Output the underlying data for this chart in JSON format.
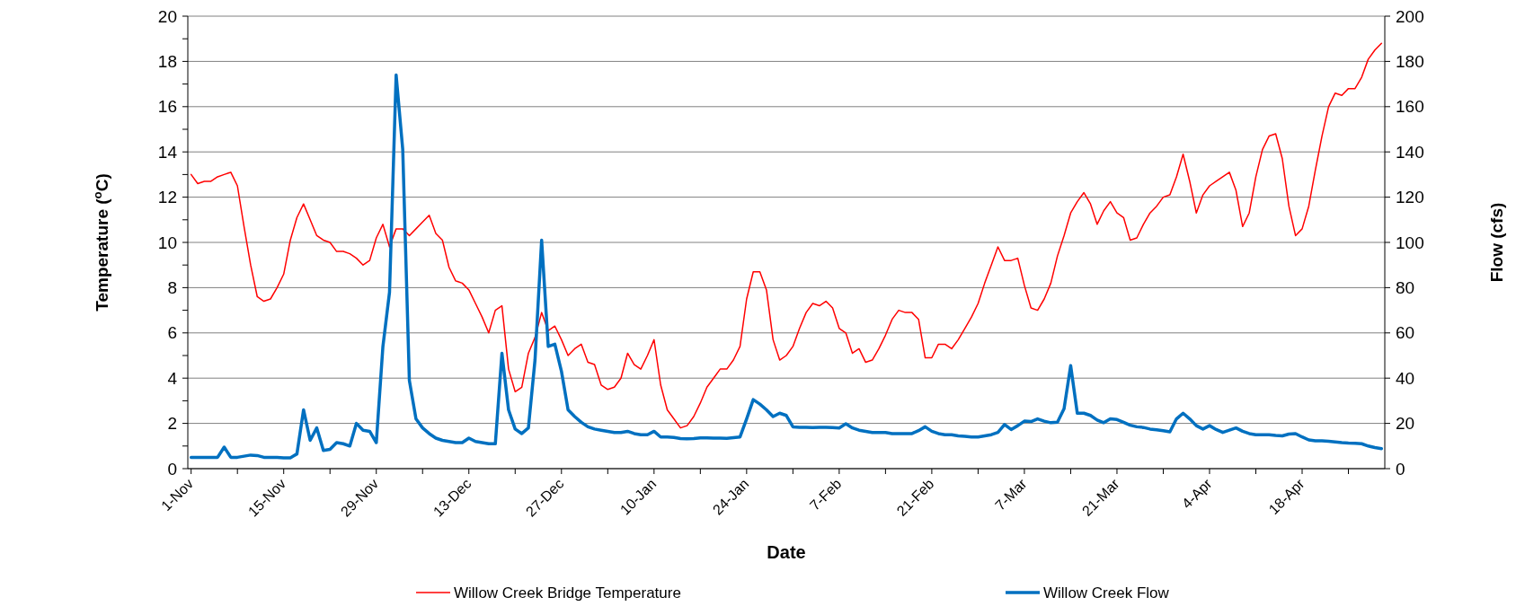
{
  "chart_data": {
    "type": "line",
    "xlabel": "Date",
    "ylabel": "Temperature ($^{o}$C)",
    "y2label": "Flow (cfs)",
    "categories": [
      "1-Nov",
      null,
      null,
      null,
      null,
      null,
      null,
      null,
      null,
      null,
      null,
      null,
      null,
      null,
      "15-Nov",
      null,
      null,
      null,
      null,
      null,
      null,
      null,
      null,
      null,
      null,
      null,
      null,
      null,
      "29-Nov",
      null,
      null,
      null,
      null,
      null,
      null,
      null,
      null,
      null,
      null,
      null,
      null,
      null,
      "13-Dec",
      null,
      null,
      null,
      null,
      null,
      null,
      null,
      null,
      null,
      null,
      null,
      null,
      null,
      "27-Dec",
      null,
      null,
      null,
      null,
      null,
      null,
      null,
      null,
      null,
      null,
      null,
      null,
      null,
      "10-Jan",
      null,
      null,
      null,
      null,
      null,
      null,
      null,
      null,
      null,
      null,
      null,
      null,
      null,
      "24-Jan",
      null,
      null,
      null,
      null,
      null,
      null,
      null,
      null,
      null,
      null,
      null,
      null,
      null,
      "7-Feb",
      null,
      null,
      null,
      null,
      null,
      null,
      null,
      null,
      null,
      null,
      null,
      null,
      null,
      "21-Feb",
      null,
      null,
      null,
      null,
      null,
      null,
      null,
      null,
      null,
      null,
      null,
      null,
      null,
      "7-Mar",
      null,
      null,
      null,
      null,
      null,
      null,
      null,
      null,
      null,
      null,
      null,
      null,
      null,
      "21-Mar",
      null,
      null,
      null,
      null,
      null,
      null,
      null,
      null,
      null,
      null,
      null,
      null,
      null,
      "4-Apr",
      null,
      null,
      null,
      null,
      null,
      null,
      null,
      null,
      null,
      null,
      null,
      null,
      null,
      "18-Apr",
      null,
      null,
      null,
      null,
      null,
      null,
      null,
      null,
      null,
      null,
      null,
      null
    ],
    "series": [
      {
        "name": "Willow Creek Bridge Temperature",
        "color": "#ff0000",
        "values": [
          13.0,
          12.6,
          12.7,
          12.7,
          12.9,
          13.0,
          13.1,
          12.5,
          10.7,
          9.0,
          7.6,
          7.4,
          7.5,
          8.0,
          8.6,
          10.1,
          11.1,
          11.7,
          11.0,
          10.3,
          10.1,
          10.0,
          9.6,
          9.6,
          9.5,
          9.3,
          9.0,
          9.2,
          10.2,
          10.8,
          9.8,
          10.6,
          10.6,
          10.3,
          10.6,
          10.9,
          11.2,
          10.4,
          10.1,
          8.9,
          8.3,
          8.2,
          7.9,
          7.3,
          6.7,
          6.0,
          7.0,
          7.2,
          4.4,
          3.4,
          3.6,
          5.1,
          5.8,
          6.9,
          6.1,
          6.3,
          5.7,
          5.0,
          5.3,
          5.5,
          4.7,
          4.6,
          3.7,
          3.5,
          3.6,
          4.0,
          5.1,
          4.6,
          4.4,
          5.0,
          5.7,
          3.7,
          2.6,
          2.2,
          1.8,
          1.9,
          2.3,
          2.9,
          3.6,
          4.0,
          4.4,
          4.4,
          4.8,
          5.4,
          7.5,
          8.7,
          8.7,
          7.9,
          5.7,
          4.8,
          5.0,
          5.4,
          6.2,
          6.9,
          7.3,
          7.2,
          7.4,
          7.1,
          6.2,
          6.0,
          5.1,
          5.3,
          4.7,
          4.8,
          5.3,
          5.9,
          6.6,
          7.0,
          6.9,
          6.9,
          6.6,
          4.9,
          4.9,
          5.5,
          5.5,
          5.3,
          5.7,
          6.2,
          6.7,
          7.3,
          8.2,
          9.0,
          9.8,
          9.2,
          9.2,
          9.3,
          8.1,
          7.1,
          7.0,
          7.5,
          8.2,
          9.4,
          10.3,
          11.3,
          11.8,
          12.2,
          11.7,
          10.8,
          11.4,
          11.8,
          11.3,
          11.1,
          10.1,
          10.2,
          10.8,
          11.3,
          11.6,
          12.0,
          12.1,
          12.9,
          13.9,
          12.7,
          11.3,
          12.1,
          12.5,
          12.7,
          12.9,
          13.1,
          12.3,
          10.7,
          11.3,
          12.9,
          14.1,
          14.7,
          14.8,
          13.7,
          11.6,
          10.3,
          10.6,
          11.6,
          13.2,
          14.7,
          16.0,
          16.6,
          16.5,
          16.8,
          16.8,
          17.3,
          18.1,
          18.5,
          18.8
        ]
      },
      {
        "name": "Willow Creek Flow",
        "color": "#0070c0",
        "axis": "y2",
        "values": [
          5,
          5,
          5,
          5,
          5,
          9.5,
          5,
          5,
          5.5,
          6,
          5.8,
          5,
          5,
          5,
          4.8,
          4.8,
          6.5,
          26,
          12.5,
          18,
          8,
          8.5,
          11.5,
          11,
          10,
          20,
          17,
          16.5,
          11.5,
          54,
          78,
          174,
          141,
          39,
          22,
          18,
          15.5,
          13.5,
          12.5,
          12,
          11.5,
          11.5,
          13.5,
          12,
          11.5,
          11,
          11,
          51,
          26,
          17.5,
          15.5,
          18,
          48,
          101,
          54,
          55,
          43,
          26,
          23,
          20.5,
          18.5,
          17.5,
          17,
          16.5,
          16,
          16,
          16.5,
          15.5,
          15,
          15,
          16.5,
          14,
          14,
          13.8,
          13.3,
          13.2,
          13.3,
          13.6,
          13.6,
          13.5,
          13.5,
          13.4,
          13.7,
          14,
          22,
          30.5,
          28.5,
          26,
          23,
          24.5,
          23.5,
          18.5,
          18.3,
          18.3,
          18.2,
          18.3,
          18.3,
          18.2,
          18,
          19.8,
          18,
          17,
          16.5,
          16,
          16,
          16,
          15.5,
          15.5,
          15.5,
          15.5,
          16.8,
          18.5,
          16.5,
          15.5,
          15,
          15,
          14.5,
          14.3,
          14,
          14,
          14.5,
          15,
          16,
          19.5,
          17.3,
          19,
          21,
          20.8,
          22,
          21,
          20.3,
          20.5,
          26.5,
          45.5,
          24.5,
          24.5,
          23.5,
          21.5,
          20.3,
          22,
          21.7,
          20.5,
          19.2,
          18.5,
          18.2,
          17.5,
          17.2,
          16.8,
          16.3,
          22,
          24.5,
          22,
          19,
          17.5,
          19,
          17.3,
          16,
          17,
          18,
          16.5,
          15.5,
          15,
          15,
          15,
          14.7,
          14.5,
          15.3,
          15.5,
          14,
          12.7,
          12.3,
          12.3,
          12.1,
          11.8,
          11.5,
          11.3,
          11.2,
          11,
          10,
          9.3,
          8.8
        ]
      }
    ],
    "ylim": [
      0,
      20
    ],
    "yticks": [
      0,
      {
        "value": 1,
        "label": null
      },
      2,
      {
        "value": 3,
        "label": null
      },
      4,
      {
        "value": 5,
        "label": null
      },
      6,
      {
        "value": 7,
        "label": null
      },
      8,
      {
        "value": 9,
        "label": null
      },
      10,
      {
        "value": 11,
        "label": null
      },
      12,
      {
        "value": 13,
        "label": null
      },
      14,
      {
        "value": 15,
        "label": null
      },
      16,
      {
        "value": 17,
        "label": null
      },
      18,
      {
        "value": 19,
        "label": null
      },
      20
    ],
    "y2lim": [
      0,
      200
    ],
    "y2ticks": [
      0,
      20,
      40,
      60,
      80,
      100,
      120,
      140,
      160,
      180,
      200
    ],
    "grid": "y",
    "legend": "bottom",
    "marker": "none",
    "line_style": "solid"
  }
}
